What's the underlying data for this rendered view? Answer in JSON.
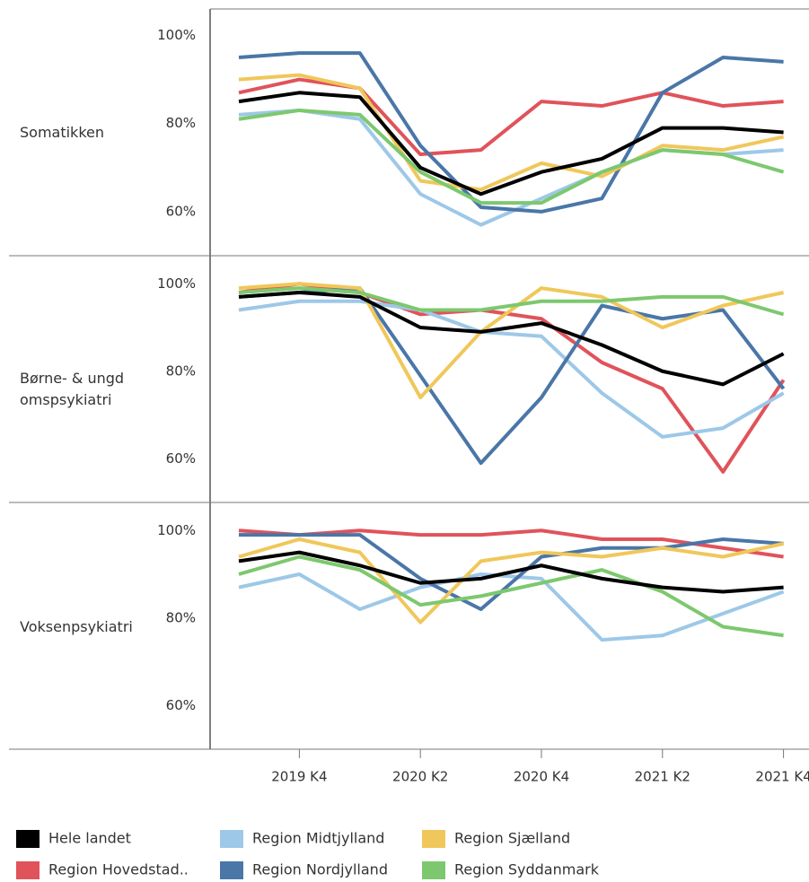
{
  "chart_data": {
    "type": "line",
    "categories": [
      null,
      "2019 K4",
      null,
      "2020 K2",
      null,
      "2020 K4",
      null,
      "2021 K2",
      null,
      "2021 K4"
    ],
    "ylim": [
      50,
      106
    ],
    "yticks": [
      {
        "value": 60,
        "label": "60%"
      },
      {
        "value": 80,
        "label": "80%"
      },
      {
        "value": 100,
        "label": "100%"
      }
    ],
    "series": [
      {
        "name": "Hele landet",
        "color": "#000000"
      },
      {
        "name": "Region Hovedstad..",
        "color": "#e0535a"
      },
      {
        "name": "Region Midtjylland",
        "color": "#9dc8e8"
      },
      {
        "name": "Region Nordjylland",
        "color": "#4a76a8"
      },
      {
        "name": "Region Sjælland",
        "color": "#f0c75a"
      },
      {
        "name": "Region Syddanmark",
        "color": "#7dc86e"
      }
    ],
    "panels": [
      {
        "title": "Somatikken",
        "series": [
          {
            "values": [
              85,
              87,
              86,
              70,
              64,
              69,
              72,
              79,
              79,
              78
            ]
          },
          {
            "values": [
              87,
              90,
              88,
              73,
              74,
              85,
              84,
              87,
              84,
              85
            ]
          },
          {
            "values": [
              82,
              83,
              81,
              64,
              57,
              63,
              69,
              74,
              73,
              74
            ]
          },
          {
            "values": [
              95,
              96,
              96,
              75,
              61,
              60,
              63,
              87,
              95,
              94
            ]
          },
          {
            "values": [
              90,
              91,
              88,
              67,
              65,
              71,
              68,
              75,
              74,
              77
            ]
          },
          {
            "values": [
              81,
              83,
              82,
              69,
              62,
              62,
              69,
              74,
              73,
              69
            ]
          }
        ]
      },
      {
        "title": "Børne- & ungd omspsykiatri",
        "series": [
          {
            "values": [
              97,
              98,
              97,
              90,
              89,
              91,
              86,
              80,
              77,
              84
            ]
          },
          {
            "values": [
              98,
              100,
              98,
              93,
              94,
              92,
              82,
              76,
              57,
              78
            ]
          },
          {
            "values": [
              94,
              96,
              96,
              94,
              89,
              88,
              75,
              65,
              67,
              75
            ]
          },
          {
            "values": [
              97,
              98,
              99,
              79,
              59,
              74,
              95,
              92,
              94,
              76
            ]
          },
          {
            "values": [
              99,
              100,
              99,
              74,
              89,
              99,
              97,
              90,
              95,
              98
            ]
          },
          {
            "values": [
              98,
              99,
              98,
              94,
              94,
              96,
              96,
              97,
              97,
              93
            ]
          }
        ]
      },
      {
        "title": "Voksenpsykiatri",
        "series": [
          {
            "values": [
              93,
              95,
              92,
              88,
              89,
              92,
              89,
              87,
              86,
              87
            ]
          },
          {
            "values": [
              100,
              99,
              100,
              99,
              99,
              100,
              98,
              98,
              96,
              94
            ]
          },
          {
            "values": [
              87,
              90,
              82,
              87,
              90,
              89,
              75,
              76,
              81,
              86
            ]
          },
          {
            "values": [
              99,
              99,
              99,
              89,
              82,
              94,
              96,
              96,
              98,
              97
            ]
          },
          {
            "values": [
              94,
              98,
              95,
              79,
              93,
              95,
              94,
              96,
              94,
              97
            ]
          },
          {
            "values": [
              90,
              94,
              91,
              83,
              85,
              88,
              91,
              86,
              78,
              76
            ]
          }
        ]
      }
    ]
  }
}
